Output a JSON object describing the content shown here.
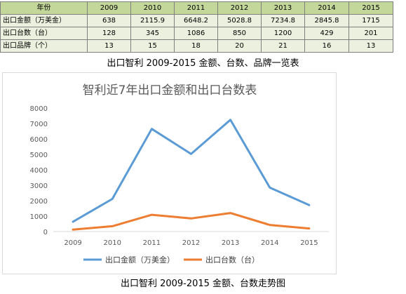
{
  "table": {
    "header_label": "年份",
    "years": [
      "2009",
      "2010",
      "2011",
      "2012",
      "2013",
      "2014",
      "2015"
    ],
    "rows": [
      {
        "label": "出口金额（万美金）",
        "cells": [
          "638",
          "2115.9",
          "6648.2",
          "5028.8",
          "7234.8",
          "2845.8",
          "1715"
        ]
      },
      {
        "label": "出口台数（台）",
        "cells": [
          "128",
          "345",
          "1086",
          "850",
          "1200",
          "429",
          "201"
        ]
      },
      {
        "label": "出口品牌（个）",
        "cells": [
          "13",
          "15",
          "18",
          "20",
          "21",
          "16",
          "13"
        ]
      }
    ],
    "colors": {
      "header_bg": "#c4d79b",
      "body_bg": "#ebf1de",
      "border": "#7f7f7f"
    }
  },
  "table_caption": "出口智利 2009-2015 金额、台数、品牌一览表",
  "chart_caption": "出口智利 2009-2015 金额、台数走势图",
  "chart_data": {
    "type": "line",
    "title": "智利近7年出口金额和出口台数表",
    "xlabel": "",
    "ylabel": "",
    "categories": [
      "2009",
      "2010",
      "2011",
      "2012",
      "2013",
      "2014",
      "2015"
    ],
    "series": [
      {
        "name": "出口金额（万美金）",
        "values": [
          638,
          2115.9,
          6648.2,
          5028.8,
          7234.8,
          2845.8,
          1715
        ],
        "color": "#5b9bd5"
      },
      {
        "name": "出口台数（台）",
        "values": [
          128,
          345,
          1086,
          850,
          1200,
          429,
          201
        ],
        "color": "#ed7d31"
      }
    ],
    "ylim": [
      0,
      8000
    ],
    "yticks": [
      "0",
      "1000",
      "2000",
      "3000",
      "4000",
      "5000",
      "6000",
      "7000",
      "8000"
    ],
    "grid": false,
    "legend_position": "bottom"
  }
}
